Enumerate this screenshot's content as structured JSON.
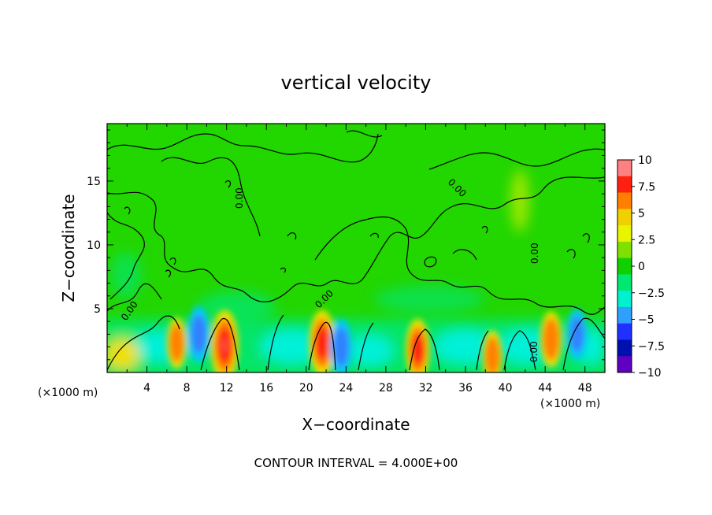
{
  "chart_data": {
    "type": "heatmap",
    "title": "vertical velocity",
    "xlabel": "X−coordinate",
    "ylabel": "Z−coordinate",
    "x_unit": "(×1000 m)",
    "x_unit_right": "(×1000 m)",
    "xlim": [
      0,
      50
    ],
    "ylim": [
      0,
      19.5
    ],
    "x_ticks": [
      4,
      8,
      12,
      16,
      20,
      24,
      28,
      32,
      36,
      40,
      44,
      48
    ],
    "y_ticks": [
      5,
      10,
      15
    ],
    "colorbar": {
      "ticks": [
        "10",
        "7.5",
        "5",
        "2.5",
        "0",
        "−2.5",
        "−5",
        "−7.5",
        "−10"
      ],
      "range": [
        -10,
        10
      ],
      "colors": [
        "#ff8080",
        "#ff2010",
        "#ff8000",
        "#f0d000",
        "#e8f400",
        "#80e000",
        "#10d000",
        "#00e870",
        "#00f0d0",
        "#30a0ff",
        "#2030ff",
        "#0010b0",
        "#6000c0"
      ]
    },
    "contour_labels": [
      "0.00",
      "0.00",
      "0.00",
      "0.00",
      "0.00",
      "0.00"
    ],
    "contour_interval_text": "CONTOUR INTERVAL = 4.000E+00",
    "features": [
      {
        "x": 7.0,
        "z": 2.3,
        "w": 4.0,
        "kind": "updraft"
      },
      {
        "x": 9.2,
        "z": 3.0,
        "w": -5.0,
        "kind": "downdraft"
      },
      {
        "x": 11.8,
        "z": 2.1,
        "w": 8.0,
        "kind": "updraft"
      },
      {
        "x": 21.6,
        "z": 2.3,
        "w": 7.0,
        "kind": "updraft"
      },
      {
        "x": 23.5,
        "z": 2.0,
        "w": -5.0,
        "kind": "downdraft"
      },
      {
        "x": 31.2,
        "z": 1.8,
        "w": 6.0,
        "kind": "updraft"
      },
      {
        "x": 38.7,
        "z": 1.3,
        "w": 4.0,
        "kind": "updraft"
      },
      {
        "x": 44.6,
        "z": 2.6,
        "w": 5.0,
        "kind": "updraft"
      },
      {
        "x": 47.2,
        "z": 3.0,
        "w": -4.0,
        "kind": "downdraft"
      }
    ]
  }
}
